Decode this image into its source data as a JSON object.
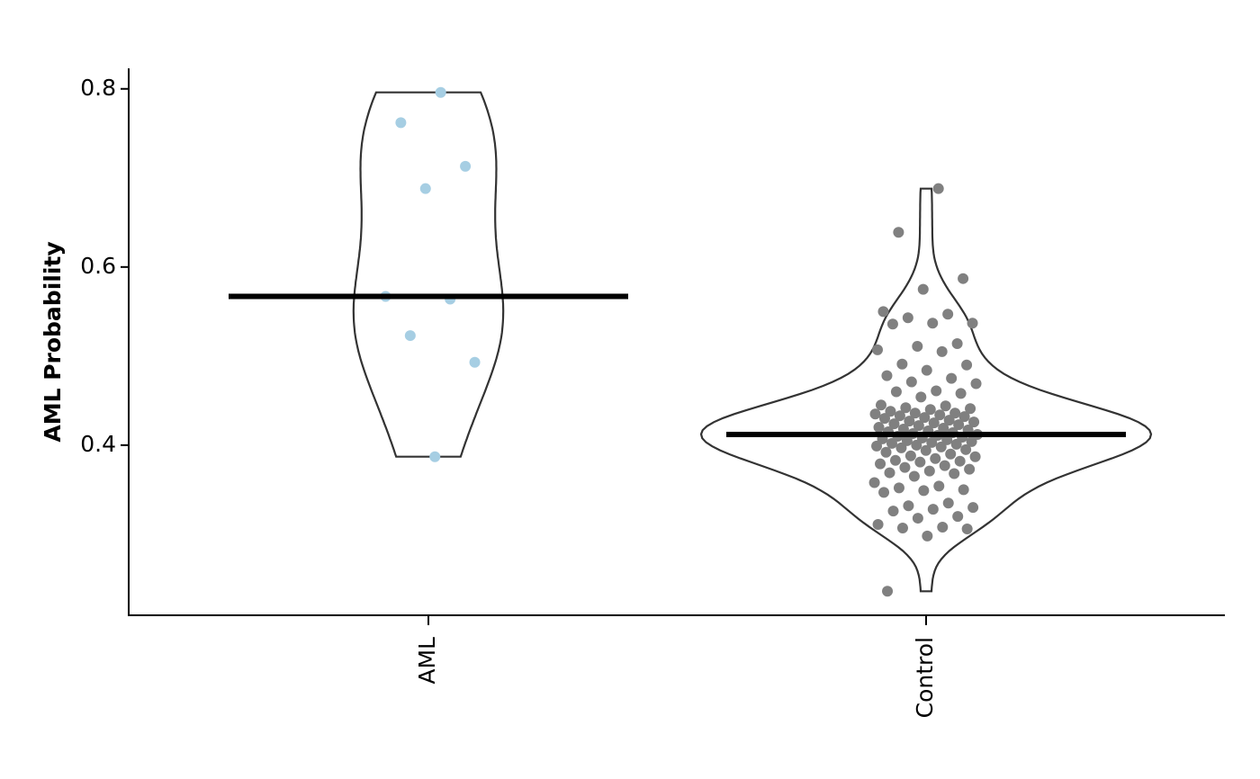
{
  "chart_data": {
    "type": "violin",
    "y_label": "AML Probability",
    "categories": [
      "AML",
      "Control"
    ],
    "ylim": [
      0.209,
      0.823
    ],
    "yticks": [
      0.4,
      0.6,
      0.8
    ],
    "groups": [
      {
        "color": "#a6cee3",
        "median": 0.567,
        "values": [
          0.796,
          0.762,
          0.713,
          0.688,
          0.567,
          0.564,
          0.523,
          0.493,
          0.387
        ]
      },
      {
        "color": "#808080",
        "median": 0.412,
        "values": [
          0.688,
          0.639,
          0.587,
          0.575,
          0.55,
          0.547,
          0.543,
          0.537,
          0.537,
          0.536,
          0.514,
          0.511,
          0.507,
          0.505,
          0.491,
          0.49,
          0.484,
          0.478,
          0.475,
          0.471,
          0.469,
          0.461,
          0.46,
          0.458,
          0.454,
          0.445,
          0.444,
          0.442,
          0.441,
          0.44,
          0.438,
          0.436,
          0.436,
          0.435,
          0.434,
          0.433,
          0.432,
          0.431,
          0.43,
          0.428,
          0.427,
          0.426,
          0.425,
          0.424,
          0.423,
          0.422,
          0.42,
          0.419,
          0.418,
          0.417,
          0.416,
          0.415,
          0.414,
          0.413,
          0.412,
          0.411,
          0.41,
          0.409,
          0.408,
          0.407,
          0.406,
          0.405,
          0.404,
          0.403,
          0.402,
          0.401,
          0.4,
          0.399,
          0.398,
          0.397,
          0.395,
          0.394,
          0.392,
          0.39,
          0.388,
          0.387,
          0.385,
          0.383,
          0.382,
          0.381,
          0.379,
          0.377,
          0.375,
          0.373,
          0.371,
          0.369,
          0.368,
          0.365,
          0.358,
          0.354,
          0.352,
          0.35,
          0.349,
          0.347,
          0.335,
          0.332,
          0.33,
          0.328,
          0.326,
          0.32,
          0.318,
          0.311,
          0.308,
          0.307,
          0.306,
          0.298,
          0.236
        ]
      }
    ]
  }
}
